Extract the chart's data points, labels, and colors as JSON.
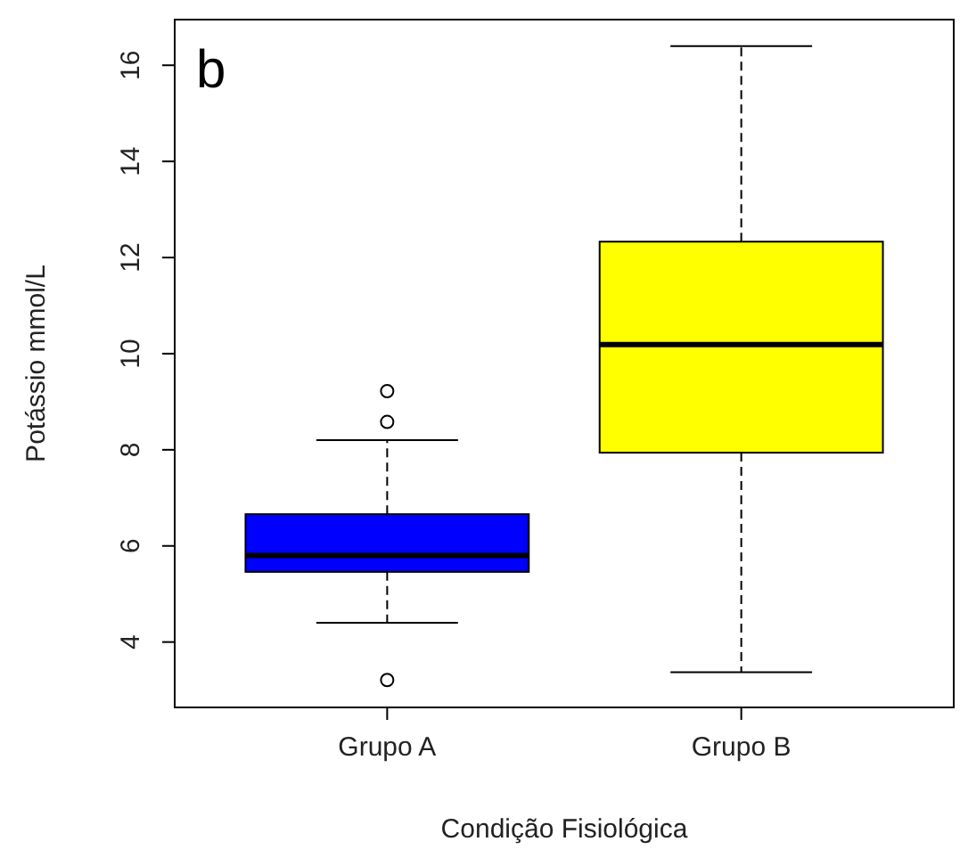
{
  "chart_data": {
    "type": "box",
    "xlabel": "Condição Fisiológica",
    "ylabel": "Potássio mmol/L",
    "annotations": [
      "b"
    ],
    "categories": [
      "Grupo A",
      "Grupo B"
    ],
    "colors": [
      "#0000ff",
      "#ffff00"
    ],
    "boxes": [
      {
        "low": 4.4,
        "q1": 5.46,
        "median": 5.8,
        "q3": 6.66,
        "high": 8.2,
        "outliers": [
          9.22,
          8.58,
          3.21
        ]
      },
      {
        "low": 3.37,
        "q1": 7.94,
        "median": 10.19,
        "q3": 12.33,
        "high": 16.4
      }
    ],
    "ylim": [
      2.64,
      16.95
    ],
    "yticks": [
      4,
      6,
      8,
      10,
      12,
      14,
      16
    ],
    "grid": false
  }
}
